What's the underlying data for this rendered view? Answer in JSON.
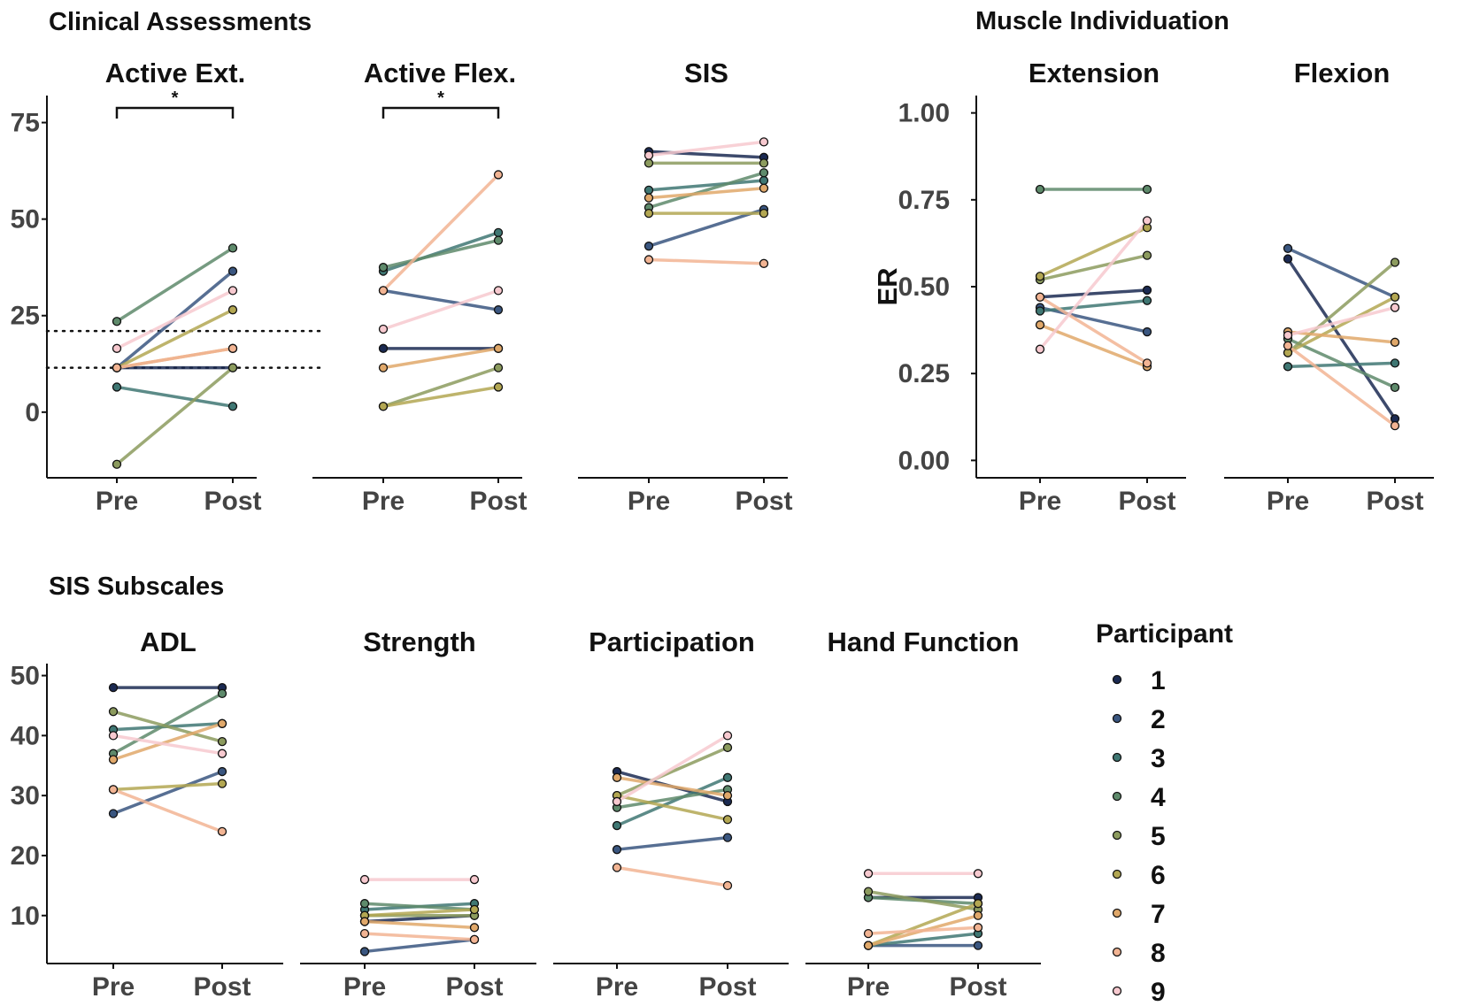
{
  "section_titles": {
    "clinical": "Clinical Assessments",
    "muscle": "Muscle Individuation",
    "sis": "SIS Subscales"
  },
  "legend": {
    "title": "Participant",
    "labels": [
      "1",
      "2",
      "3",
      "4",
      "5",
      "6",
      "7",
      "8",
      "9"
    ]
  },
  "colors": [
    "#1b2a52",
    "#3a5680",
    "#3f7773",
    "#5e8a6b",
    "#8c9b5e",
    "#b3a752",
    "#e0a86a",
    "#f2b493",
    "#f7c9cf"
  ],
  "significance_marker": "*",
  "chart_data": [
    {
      "type": "line",
      "title": "Active Ext.",
      "categories": [
        "Pre",
        "Post"
      ],
      "yticks": [
        0,
        25,
        50,
        75
      ],
      "ylim": [
        -17,
        82
      ],
      "significant": true,
      "reference_lines": [
        21,
        11.5
      ],
      "series": [
        {
          "name": "1",
          "values": [
            11.5,
            11.5
          ]
        },
        {
          "name": "2",
          "values": [
            11.5,
            36.5
          ]
        },
        {
          "name": "3",
          "values": [
            6.5,
            1.5
          ]
        },
        {
          "name": "4",
          "values": [
            23.5,
            42.5
          ]
        },
        {
          "name": "5",
          "values": [
            -13.5,
            11.5
          ]
        },
        {
          "name": "6",
          "values": [
            11.5,
            26.5
          ]
        },
        {
          "name": "7",
          "values": [
            11.5,
            16.5
          ]
        },
        {
          "name": "8",
          "values": [
            11.5,
            16.5
          ]
        },
        {
          "name": "9",
          "values": [
            16.5,
            31.5
          ]
        }
      ]
    },
    {
      "type": "line",
      "title": "Active Flex.",
      "categories": [
        "Pre",
        "Post"
      ],
      "ylim": [
        -17,
        82
      ],
      "significant": true,
      "series": [
        {
          "name": "1",
          "values": [
            16.5,
            16.5
          ]
        },
        {
          "name": "2",
          "values": [
            31.5,
            26.5
          ]
        },
        {
          "name": "3",
          "values": [
            36.5,
            46.5
          ]
        },
        {
          "name": "4",
          "values": [
            37.5,
            44.5
          ]
        },
        {
          "name": "5",
          "values": [
            1.5,
            11.5
          ]
        },
        {
          "name": "6",
          "values": [
            1.5,
            6.5
          ]
        },
        {
          "name": "7",
          "values": [
            11.5,
            16.5
          ]
        },
        {
          "name": "8",
          "values": [
            31.5,
            61.5
          ]
        },
        {
          "name": "9",
          "values": [
            21.5,
            31.5
          ]
        }
      ]
    },
    {
      "type": "line",
      "title": "SIS",
      "categories": [
        "Pre",
        "Post"
      ],
      "ylim": [
        -17,
        82
      ],
      "significant": false,
      "series": [
        {
          "name": "1",
          "values": [
            67.5,
            66
          ]
        },
        {
          "name": "2",
          "values": [
            43,
            52.5
          ]
        },
        {
          "name": "3",
          "values": [
            57.5,
            60
          ]
        },
        {
          "name": "4",
          "values": [
            53,
            62
          ]
        },
        {
          "name": "5",
          "values": [
            64.5,
            64.5
          ]
        },
        {
          "name": "6",
          "values": [
            51.5,
            51.5
          ]
        },
        {
          "name": "7",
          "values": [
            55.5,
            58
          ]
        },
        {
          "name": "8",
          "values": [
            39.5,
            38.5
          ]
        },
        {
          "name": "9",
          "values": [
            66.5,
            70
          ]
        }
      ]
    },
    {
      "type": "line",
      "title": "Extension",
      "categories": [
        "Pre",
        "Post"
      ],
      "ylabel": "ER",
      "yticks": [
        0,
        0.25,
        0.5,
        0.75,
        1
      ],
      "ytick_labels": [
        "0.00",
        "0.25",
        "0.50",
        "0.75",
        "1.00"
      ],
      "ylim": [
        -0.05,
        1.05
      ],
      "significant": false,
      "series": [
        {
          "name": "1",
          "values": [
            0.47,
            0.49
          ]
        },
        {
          "name": "2",
          "values": [
            0.44,
            0.37
          ]
        },
        {
          "name": "3",
          "values": [
            0.43,
            0.46
          ]
        },
        {
          "name": "4",
          "values": [
            0.78,
            0.78
          ]
        },
        {
          "name": "5",
          "values": [
            0.52,
            0.59
          ]
        },
        {
          "name": "6",
          "values": [
            0.53,
            0.67
          ]
        },
        {
          "name": "7",
          "values": [
            0.39,
            0.27
          ]
        },
        {
          "name": "8",
          "values": [
            0.47,
            0.28
          ]
        },
        {
          "name": "9",
          "values": [
            0.32,
            0.69
          ]
        }
      ]
    },
    {
      "type": "line",
      "title": "Flexion",
      "categories": [
        "Pre",
        "Post"
      ],
      "ylim": [
        -0.05,
        1.05
      ],
      "significant": false,
      "series": [
        {
          "name": "1",
          "values": [
            0.58,
            0.12
          ]
        },
        {
          "name": "2",
          "values": [
            0.61,
            0.47
          ]
        },
        {
          "name": "3",
          "values": [
            0.27,
            0.28
          ]
        },
        {
          "name": "4",
          "values": [
            0.35,
            0.21
          ]
        },
        {
          "name": "5",
          "values": [
            0.31,
            0.57
          ]
        },
        {
          "name": "6",
          "values": [
            0.31,
            0.47
          ]
        },
        {
          "name": "7",
          "values": [
            0.37,
            0.34
          ]
        },
        {
          "name": "8",
          "values": [
            0.33,
            0.1
          ]
        },
        {
          "name": "9",
          "values": [
            0.36,
            0.44
          ]
        }
      ]
    },
    {
      "type": "line",
      "title": "ADL",
      "categories": [
        "Pre",
        "Post"
      ],
      "yticks": [
        10,
        20,
        30,
        40,
        50
      ],
      "ylim": [
        2,
        52
      ],
      "significant": false,
      "series": [
        {
          "name": "1",
          "values": [
            48,
            48
          ]
        },
        {
          "name": "2",
          "values": [
            27,
            34
          ]
        },
        {
          "name": "3",
          "values": [
            41,
            42
          ]
        },
        {
          "name": "4",
          "values": [
            37,
            47
          ]
        },
        {
          "name": "5",
          "values": [
            44,
            39
          ]
        },
        {
          "name": "6",
          "values": [
            31,
            32
          ]
        },
        {
          "name": "7",
          "values": [
            36,
            42
          ]
        },
        {
          "name": "8",
          "values": [
            31,
            24
          ]
        },
        {
          "name": "9",
          "values": [
            40,
            37
          ]
        }
      ]
    },
    {
      "type": "line",
      "title": "Strength",
      "categories": [
        "Pre",
        "Post"
      ],
      "ylim": [
        2,
        52
      ],
      "significant": false,
      "series": [
        {
          "name": "1",
          "values": [
            9,
            10
          ]
        },
        {
          "name": "2",
          "values": [
            4,
            6
          ]
        },
        {
          "name": "3",
          "values": [
            11,
            12
          ]
        },
        {
          "name": "4",
          "values": [
            12,
            11
          ]
        },
        {
          "name": "5",
          "values": [
            10,
            10
          ]
        },
        {
          "name": "6",
          "values": [
            10,
            11
          ]
        },
        {
          "name": "7",
          "values": [
            9,
            8
          ]
        },
        {
          "name": "8",
          "values": [
            7,
            6
          ]
        },
        {
          "name": "9",
          "values": [
            16,
            16
          ]
        }
      ]
    },
    {
      "type": "line",
      "title": "Participation",
      "categories": [
        "Pre",
        "Post"
      ],
      "ylim": [
        2,
        52
      ],
      "significant": false,
      "series": [
        {
          "name": "1",
          "values": [
            34,
            29
          ]
        },
        {
          "name": "2",
          "values": [
            21,
            23
          ]
        },
        {
          "name": "3",
          "values": [
            25,
            33
          ]
        },
        {
          "name": "4",
          "values": [
            28,
            31
          ]
        },
        {
          "name": "5",
          "values": [
            30,
            38
          ]
        },
        {
          "name": "6",
          "values": [
            30,
            26
          ]
        },
        {
          "name": "7",
          "values": [
            33,
            30
          ]
        },
        {
          "name": "8",
          "values": [
            18,
            15
          ]
        },
        {
          "name": "9",
          "values": [
            29,
            40
          ]
        }
      ]
    },
    {
      "type": "line",
      "title": "Hand Function",
      "categories": [
        "Pre",
        "Post"
      ],
      "ylim": [
        2,
        52
      ],
      "significant": false,
      "series": [
        {
          "name": "1",
          "values": [
            13,
            13
          ]
        },
        {
          "name": "2",
          "values": [
            5,
            5
          ]
        },
        {
          "name": "3",
          "values": [
            5,
            7
          ]
        },
        {
          "name": "4",
          "values": [
            13,
            12
          ]
        },
        {
          "name": "5",
          "values": [
            14,
            11
          ]
        },
        {
          "name": "6",
          "values": [
            5,
            12
          ]
        },
        {
          "name": "7",
          "values": [
            5,
            10
          ]
        },
        {
          "name": "8",
          "values": [
            7,
            8
          ]
        },
        {
          "name": "9",
          "values": [
            17,
            17
          ]
        }
      ]
    }
  ]
}
